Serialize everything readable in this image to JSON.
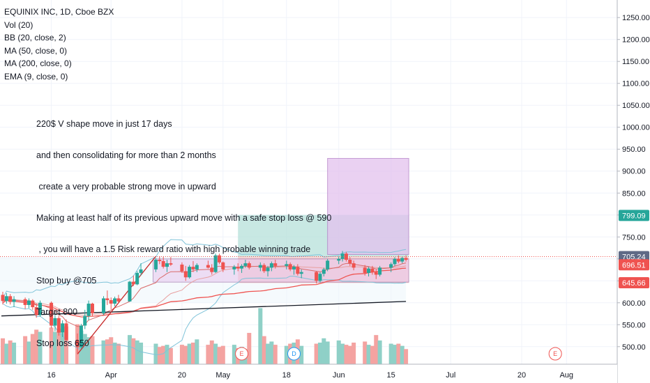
{
  "legend": {
    "title": "EQUINIX INC, 1D, Cboe BZX",
    "lines": [
      "Vol (20)",
      "BB (20, close, 2)",
      "MA (50, close, 0)",
      "MA (200, close, 0)",
      "EMA (9, close, 0)"
    ]
  },
  "note": {
    "lines": [
      "220$ V shape move in just 17 days",
      "and then consolidating for more than 2 months",
      " create a very probable strong move in upward",
      "Making at least half of its previous upward move with a safe stop loss @ 590",
      " , you will have a 1.5 Risk reward ratio with high probable winning trade",
      "Stop buy @705",
      "Target 800",
      "Stop loss 650"
    ]
  },
  "colors": {
    "up": "#26a69a",
    "down": "#ef5350",
    "bb": "#7fc3d9",
    "ma50": "#ef5350",
    "ema9": "#d96b6b",
    "trend": "#131722",
    "vol_up": "#8fd0c7",
    "vol_down": "#f4a3a1",
    "target_zone": "#b6e0da",
    "loss_zone": "#f6c1c0",
    "range_box": "#e7c6ee",
    "purple_box": "#e3c2ee",
    "tag_green": "#26a69a",
    "tag_gray": "#5f6a86",
    "tag_red": "#ef5350"
  },
  "chart_data": {
    "type": "candlestick",
    "symbol": "EQUINIX INC, 1D, Cboe BZX",
    "y_axis": {
      "range": [
        460,
        1290
      ],
      "ticks": [
        500,
        550,
        600,
        650,
        700,
        750,
        800,
        850,
        900,
        950,
        1000,
        1050,
        1100,
        1150,
        1200,
        1250
      ],
      "tick_labels": [
        "500.00",
        "550.00",
        "600.00",
        "650.00",
        "700.00",
        "750.00",
        "800.00",
        "850.00",
        "900.00",
        "950.00",
        "1000.00",
        "1050.00",
        "1100.00",
        "1150.00",
        "1200.00",
        "1250.00"
      ]
    },
    "x_axis": {
      "start_date": "2020-03-03",
      "end_date": "2020-08-06",
      "tick_dates": [
        "2020-03-16",
        "2020-04-01",
        "2020-04-20",
        "2020-05-01",
        "2020-05-18",
        "2020-06-01",
        "2020-06-15",
        "2020-07-01",
        "2020-07-20",
        "2020-08-01"
      ],
      "tick_labels": [
        "16",
        "Apr",
        "20",
        "May",
        "18",
        "Jun",
        "15",
        "Jul",
        "20",
        "Aug"
      ]
    },
    "candles": [
      [
        "2020-03-03",
        618,
        625,
        596,
        604
      ],
      [
        "2020-03-04",
        604,
        622,
        598,
        615
      ],
      [
        "2020-03-05",
        615,
        620,
        596,
        602
      ],
      [
        "2020-03-06",
        602,
        615,
        590,
        608
      ],
      [
        "2020-03-09",
        608,
        612,
        586,
        595
      ],
      [
        "2020-03-10",
        595,
        610,
        588,
        605
      ],
      [
        "2020-03-11",
        605,
        608,
        584,
        590
      ],
      [
        "2020-03-12",
        590,
        598,
        566,
        572
      ],
      [
        "2020-03-13",
        572,
        605,
        568,
        600
      ],
      [
        "2020-03-16",
        600,
        603,
        542,
        548
      ],
      [
        "2020-03-17",
        548,
        572,
        535,
        565
      ],
      [
        "2020-03-18",
        565,
        570,
        525,
        532
      ],
      [
        "2020-03-19",
        532,
        560,
        522,
        553
      ],
      [
        "2020-03-20",
        553,
        562,
        510,
        515
      ],
      [
        "2020-03-23",
        515,
        530,
        483,
        499
      ],
      [
        "2020-03-24",
        499,
        552,
        496,
        548
      ],
      [
        "2020-03-25",
        548,
        584,
        540,
        570
      ],
      [
        "2020-03-26",
        570,
        605,
        560,
        598
      ],
      [
        "2020-03-27",
        598,
        600,
        570,
        576
      ],
      [
        "2020-03-30",
        576,
        615,
        572,
        610
      ],
      [
        "2020-03-31",
        610,
        628,
        595,
        606
      ],
      [
        "2020-04-01",
        606,
        612,
        585,
        598
      ],
      [
        "2020-04-02",
        598,
        614,
        592,
        610
      ],
      [
        "2020-04-03",
        610,
        618,
        600,
        603
      ],
      [
        "2020-04-06",
        603,
        650,
        603,
        648
      ],
      [
        "2020-04-07",
        648,
        662,
        638,
        642
      ],
      [
        "2020-04-08",
        642,
        672,
        640,
        668
      ],
      [
        "2020-04-09",
        668,
        690,
        662,
        676
      ],
      [
        "2020-04-13",
        676,
        702,
        670,
        698
      ],
      [
        "2020-04-14",
        698,
        706,
        688,
        695
      ],
      [
        "2020-04-15",
        695,
        705,
        678,
        682
      ],
      [
        "2020-04-16",
        682,
        698,
        670,
        690
      ],
      [
        "2020-04-17",
        690,
        704,
        684,
        687
      ],
      [
        "2020-04-20",
        687,
        692,
        668,
        672
      ],
      [
        "2020-04-21",
        672,
        684,
        650,
        658
      ],
      [
        "2020-04-22",
        658,
        686,
        655,
        682
      ],
      [
        "2020-04-23",
        682,
        695,
        670,
        676
      ],
      [
        "2020-04-24",
        676,
        690,
        670,
        686
      ],
      [
        "2020-04-27",
        686,
        696,
        678,
        680
      ],
      [
        "2020-04-28",
        680,
        688,
        664,
        670
      ],
      [
        "2020-04-29",
        670,
        712,
        668,
        708
      ],
      [
        "2020-04-30",
        708,
        712,
        688,
        692
      ],
      [
        "2020-05-01",
        692,
        694,
        670,
        676
      ],
      [
        "2020-05-04",
        676,
        686,
        664,
        682
      ],
      [
        "2020-05-05",
        682,
        690,
        672,
        678
      ],
      [
        "2020-05-06",
        678,
        688,
        668,
        684
      ],
      [
        "2020-05-07",
        684,
        698,
        680,
        690
      ],
      [
        "2020-05-08",
        690,
        694,
        676,
        680
      ],
      [
        "2020-05-11",
        680,
        692,
        672,
        686
      ],
      [
        "2020-05-12",
        686,
        690,
        668,
        672
      ],
      [
        "2020-05-13",
        672,
        684,
        660,
        680
      ],
      [
        "2020-05-14",
        680,
        694,
        672,
        690
      ],
      [
        "2020-05-15",
        690,
        698,
        678,
        684
      ],
      [
        "2020-05-18",
        684,
        696,
        676,
        688
      ],
      [
        "2020-05-19",
        688,
        692,
        672,
        676
      ],
      [
        "2020-05-20",
        676,
        686,
        664,
        682
      ],
      [
        "2020-05-21",
        682,
        688,
        662,
        666
      ],
      [
        "2020-05-22",
        666,
        676,
        656,
        670
      ],
      [
        "2020-05-26",
        670,
        672,
        644,
        650
      ],
      [
        "2020-05-27",
        650,
        670,
        646,
        666
      ],
      [
        "2020-05-28",
        666,
        680,
        660,
        676
      ],
      [
        "2020-05-29",
        676,
        700,
        672,
        696
      ],
      [
        "2020-06-01",
        696,
        706,
        688,
        700
      ],
      [
        "2020-06-02",
        700,
        718,
        694,
        712
      ],
      [
        "2020-06-03",
        712,
        716,
        694,
        698
      ],
      [
        "2020-06-04",
        698,
        704,
        684,
        690
      ],
      [
        "2020-06-05",
        690,
        696,
        674,
        680
      ],
      [
        "2020-06-08",
        680,
        686,
        662,
        668
      ],
      [
        "2020-06-09",
        668,
        682,
        660,
        678
      ],
      [
        "2020-06-10",
        678,
        684,
        664,
        670
      ],
      [
        "2020-06-11",
        670,
        676,
        654,
        664
      ],
      [
        "2020-06-12",
        664,
        684,
        660,
        680
      ],
      [
        "2020-06-15",
        680,
        692,
        670,
        688
      ],
      [
        "2020-06-16",
        688,
        704,
        684,
        700
      ],
      [
        "2020-06-17",
        700,
        708,
        690,
        694
      ],
      [
        "2020-06-18",
        694,
        706,
        690,
        702
      ],
      [
        "2020-06-19",
        702,
        708,
        694,
        698
      ]
    ],
    "volume_colors": "up/down per candle",
    "indicators": [
      {
        "name": "BB (20, close, 2)",
        "bands": "upper/lower computed from close"
      },
      {
        "name": "MA (50, close, 0)",
        "color": "#ef5350"
      },
      {
        "name": "MA (200, close, 0)"
      },
      {
        "name": "EMA (9, close, 0)"
      }
    ],
    "levels": {
      "last": 705.24,
      "target": 799.09,
      "ma": 696.51,
      "stop": 645.66
    },
    "price_labels": [
      "799.09",
      "705.24",
      "696.51",
      "645.66"
    ],
    "drawings": {
      "trend_line": [
        [
          "2020-03-03",
          570
        ],
        [
          "2020-06-19",
          603
        ]
      ],
      "range_box": {
        "from": "2020-04-13",
        "to": "2020-06-19",
        "top": 700,
        "bottom": 647
      },
      "risk_reward": {
        "from": "2020-05-05",
        "to": "2020-06-19",
        "entry": 705,
        "target": 800,
        "stop": 645
      },
      "big_box": {
        "from": "2020-05-29",
        "to": "2020-06-19",
        "top": 929,
        "bottom": 710
      },
      "v_shape_line": [
        [
          "2020-03-23",
          483
        ],
        [
          "2020-04-13",
          706
        ]
      ]
    },
    "events": [
      {
        "date": "2020-05-06",
        "label": "E"
      },
      {
        "date": "2020-05-20",
        "label": "D"
      },
      {
        "date": "2020-07-29",
        "label": "E"
      }
    ]
  }
}
